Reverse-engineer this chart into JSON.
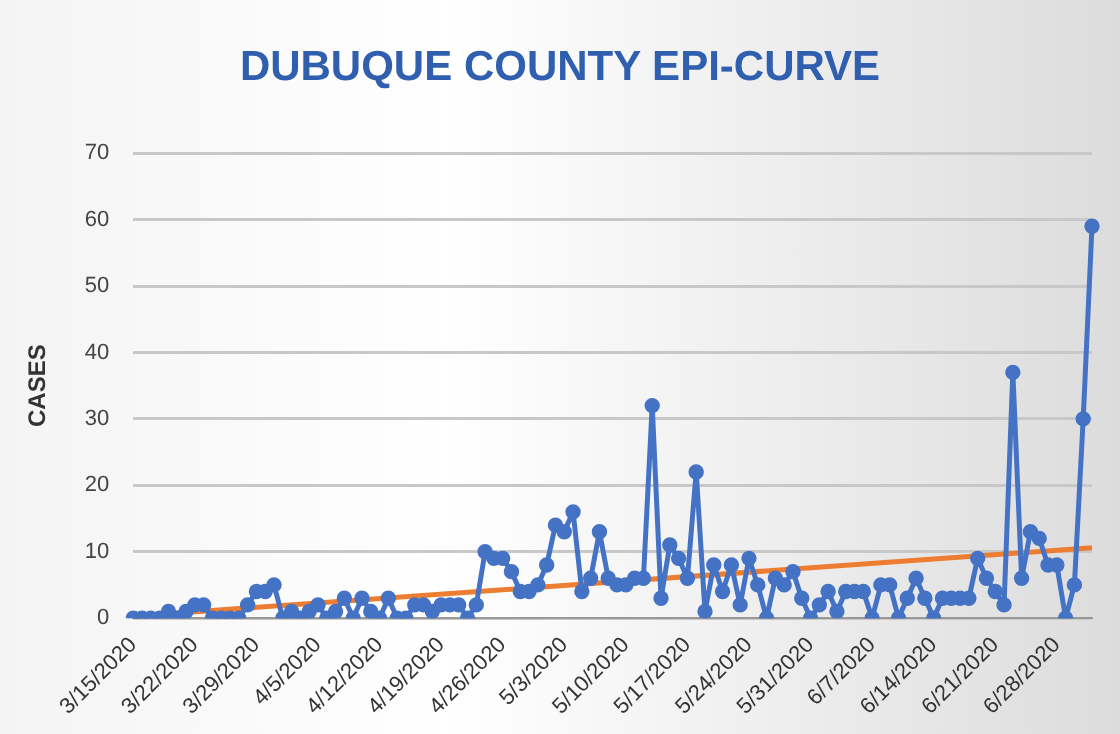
{
  "chart_data": {
    "type": "line",
    "title": "DUBUQUE COUNTY EPI-CURVE",
    "ylabel": "CASES",
    "categories": [
      "3/15/2020",
      null,
      null,
      null,
      null,
      null,
      null,
      "3/22/2020",
      null,
      null,
      null,
      null,
      null,
      null,
      "3/29/2020",
      null,
      null,
      null,
      null,
      null,
      null,
      "4/5/2020",
      null,
      null,
      null,
      null,
      null,
      null,
      "4/12/2020",
      null,
      null,
      null,
      null,
      null,
      null,
      "4/19/2020",
      null,
      null,
      null,
      null,
      null,
      null,
      "4/26/2020",
      null,
      null,
      null,
      null,
      null,
      null,
      "5/3/2020",
      null,
      null,
      null,
      null,
      null,
      null,
      "5/10/2020",
      null,
      null,
      null,
      null,
      null,
      null,
      "5/17/2020",
      null,
      null,
      null,
      null,
      null,
      null,
      "5/24/2020",
      null,
      null,
      null,
      null,
      null,
      null,
      "5/31/2020",
      null,
      null,
      null,
      null,
      null,
      null,
      "6/7/2020",
      null,
      null,
      null,
      null,
      null,
      null,
      "6/14/2020",
      null,
      null,
      null,
      null,
      null,
      null,
      "6/21/2020",
      null,
      null,
      null,
      null,
      null,
      null,
      "6/28/2020",
      null,
      null,
      null,
      null
    ],
    "series": [
      {
        "color": "#4472c4",
        "marker": "circle",
        "values": [
          0,
          0,
          0,
          0,
          1,
          0,
          1,
          2,
          2,
          0,
          0,
          0,
          0,
          2,
          4,
          4,
          5,
          0,
          1,
          0,
          1,
          2,
          0,
          1,
          3,
          0,
          3,
          1,
          0,
          3,
          0,
          0,
          2,
          2,
          1,
          2,
          2,
          2,
          0,
          2,
          10,
          9,
          9,
          7,
          4,
          4,
          5,
          8,
          14,
          13,
          16,
          4,
          6,
          13,
          6,
          5,
          5,
          6,
          6,
          32,
          3,
          11,
          9,
          6,
          22,
          1,
          8,
          4,
          8,
          2,
          9,
          5,
          0,
          6,
          5,
          7,
          3,
          0,
          2,
          4,
          1,
          4,
          4,
          4,
          0,
          5,
          5,
          0,
          3,
          6,
          3,
          0,
          3,
          3,
          3,
          3,
          9,
          6,
          4,
          2,
          37,
          6,
          13,
          12,
          8,
          8,
          0,
          5,
          30,
          59
        ]
      },
      {
        "color": "#ed7d31",
        "marker": "none",
        "values": [
          0.3,
          null,
          null,
          null,
          null,
          null,
          null,
          null,
          null,
          null,
          null,
          null,
          null,
          null,
          null,
          null,
          null,
          null,
          null,
          null,
          null,
          null,
          null,
          null,
          null,
          null,
          null,
          null,
          null,
          null,
          null,
          null,
          null,
          null,
          null,
          null,
          null,
          null,
          null,
          null,
          null,
          null,
          null,
          null,
          null,
          null,
          null,
          null,
          null,
          null,
          null,
          null,
          null,
          null,
          null,
          null,
          null,
          null,
          null,
          null,
          null,
          null,
          null,
          null,
          null,
          null,
          null,
          null,
          null,
          null,
          null,
          null,
          null,
          null,
          null,
          null,
          null,
          null,
          null,
          null,
          null,
          null,
          null,
          null,
          null,
          null,
          null,
          null,
          null,
          null,
          null,
          null,
          null,
          null,
          null,
          null,
          null,
          null,
          null,
          null,
          null,
          null,
          null,
          null,
          null,
          null,
          null,
          null,
          null,
          10.6
        ]
      }
    ],
    "ylim": [
      0,
      70
    ],
    "yticks": [
      0,
      10,
      20,
      30,
      40,
      50,
      60,
      70
    ],
    "grid": "y",
    "legend": false
  }
}
